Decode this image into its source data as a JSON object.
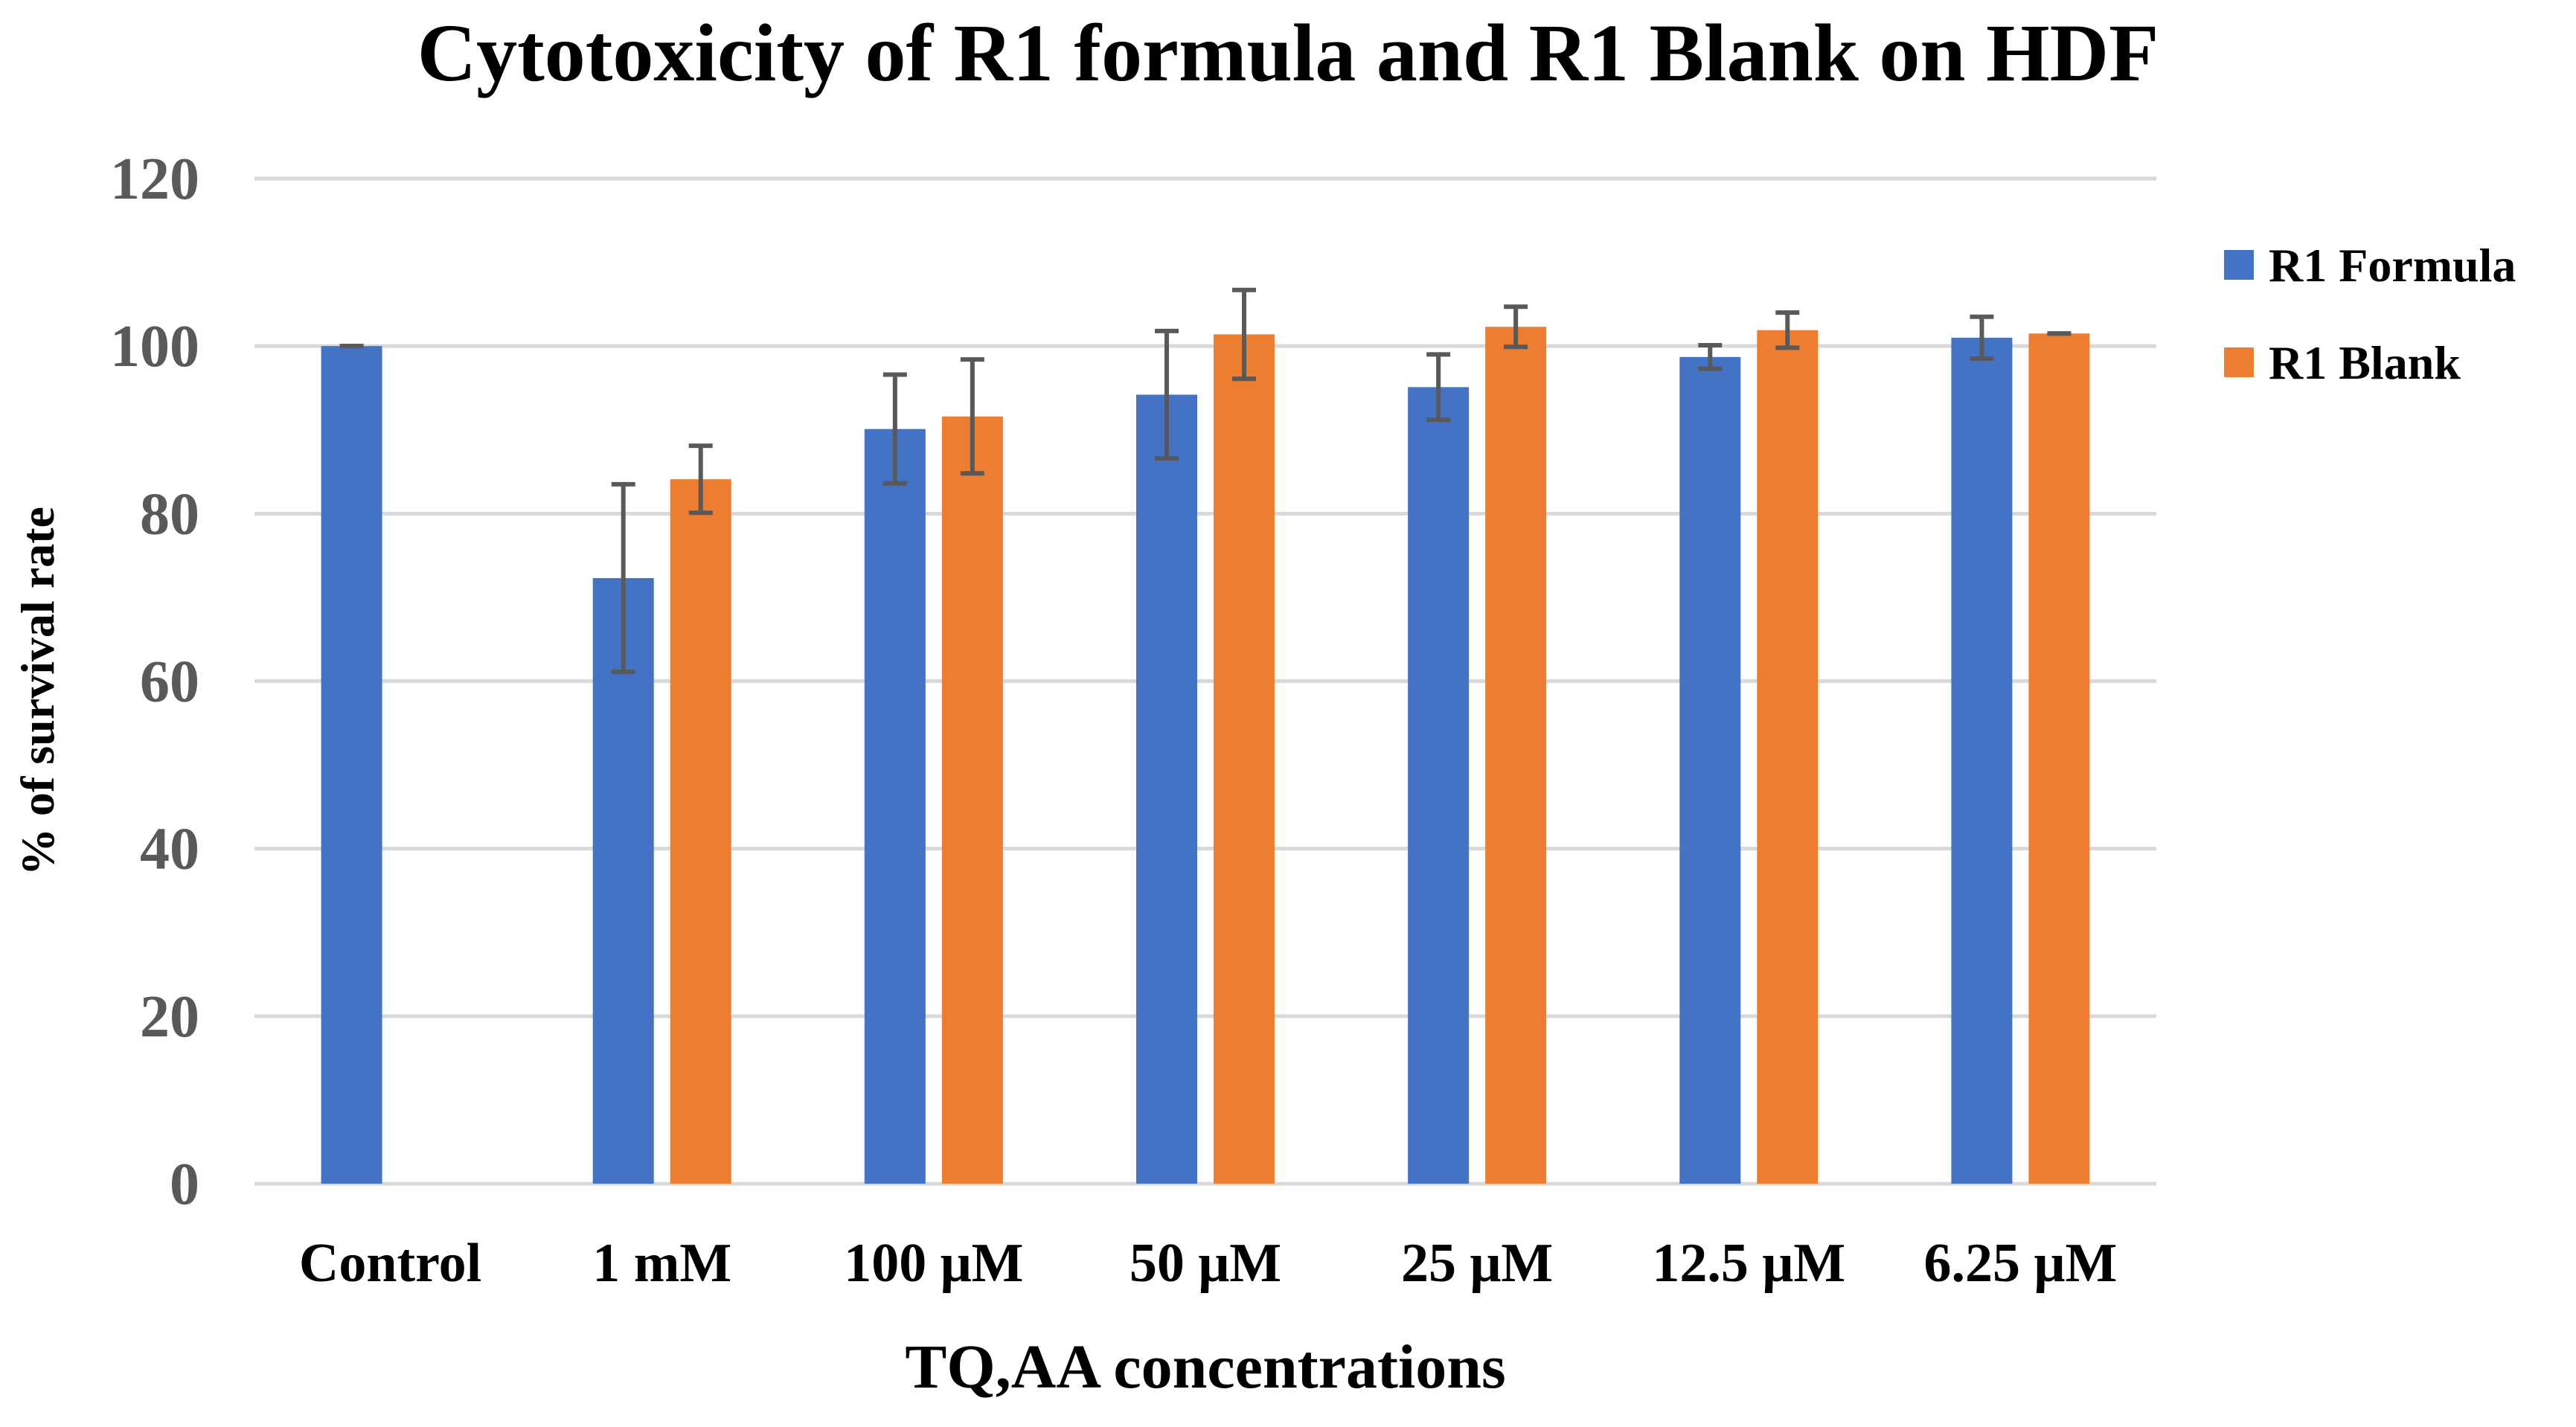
{
  "chart_data": {
    "type": "bar",
    "title": "Cytotoxicity of R1 formula and R1 Blank on HDF",
    "xlabel": "TQ,AA concentrations",
    "ylabel": "% of survival rate",
    "categories": [
      "Control",
      "1 mM",
      "100 μM",
      "50 μM",
      "25 μM",
      "12.5 μM",
      "6.25 μM"
    ],
    "ylim": [
      0,
      120
    ],
    "yticks": [
      0,
      20,
      40,
      60,
      80,
      100,
      120
    ],
    "grid": true,
    "legend_position": "right",
    "series": [
      {
        "name": "R1 Formula",
        "color": "#4472C4",
        "values": [
          100,
          72.3,
          90.1,
          94.2,
          95.1,
          98.7,
          101.0
        ],
        "errors": [
          0,
          11.2,
          6.5,
          7.6,
          3.9,
          1.4,
          2.5
        ]
      },
      {
        "name": "R1 Blank",
        "color": "#ED7D31",
        "values": [
          null,
          84.1,
          91.6,
          101.4,
          102.3,
          101.9,
          101.5
        ],
        "errors": [
          null,
          4.0,
          6.8,
          5.3,
          2.4,
          2.1,
          0
        ]
      }
    ]
  }
}
